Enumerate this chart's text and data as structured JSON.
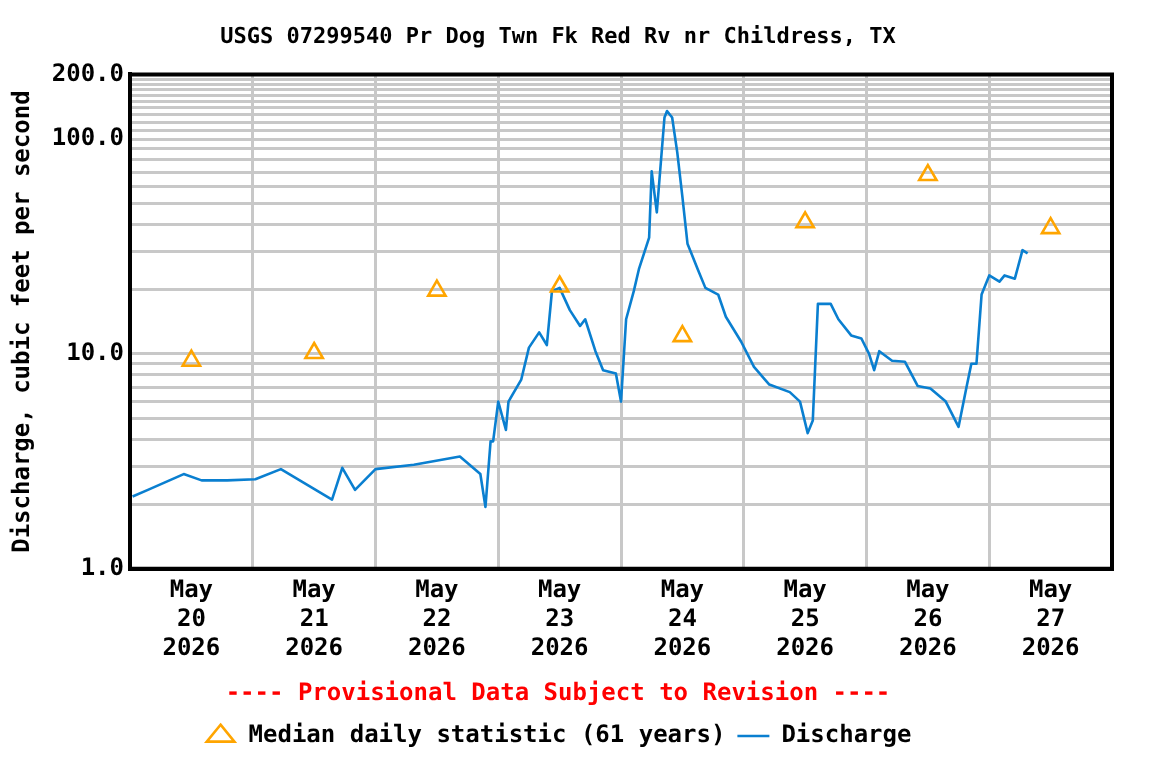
{
  "chart_data": {
    "type": "line",
    "title": "USGS 07299540 Pr Dog Twn Fk Red Rv nr Childress, TX",
    "ylabel": "Discharge, cubic feet per second",
    "annotations": [
      "---- Provisional Data Subject to Revision ----"
    ],
    "log": "y",
    "grid": true,
    "legend": "bottom",
    "xlim": [
      "2026-05-20T00:00",
      "2026-05-28T00:00"
    ],
    "xticks": [
      {
        "value": "2026-05-20T00:00",
        "label": null
      },
      {
        "value": "2026-05-20T12:00",
        "label": "May\n20\n2026"
      },
      {
        "value": "2026-05-21T00:00",
        "label": null
      },
      {
        "value": "2026-05-21T12:00",
        "label": "May\n21\n2026"
      },
      {
        "value": "2026-05-22T00:00",
        "label": null
      },
      {
        "value": "2026-05-22T12:00",
        "label": "May\n22\n2026"
      },
      {
        "value": "2026-05-23T00:00",
        "label": null
      },
      {
        "value": "2026-05-23T12:00",
        "label": "May\n23\n2026"
      },
      {
        "value": "2026-05-24T00:00",
        "label": null
      },
      {
        "value": "2026-05-24T12:00",
        "label": "May\n24\n2026"
      },
      {
        "value": "2026-05-25T00:00",
        "label": null
      },
      {
        "value": "2026-05-25T12:00",
        "label": "May\n25\n2026"
      },
      {
        "value": "2026-05-26T00:00",
        "label": null
      },
      {
        "value": "2026-05-26T12:00",
        "label": "May\n26\n2026"
      },
      {
        "value": "2026-05-27T00:00",
        "label": null
      },
      {
        "value": "2026-05-27T12:00",
        "label": "May\n27\n2026"
      },
      {
        "value": "2026-05-28T00:00",
        "label": null
      }
    ],
    "ylim": [
      1,
      200
    ],
    "yticks": [
      {
        "value": 1,
        "label": "1.0"
      },
      {
        "value": 2,
        "label": null
      },
      {
        "value": 3,
        "label": null
      },
      {
        "value": 4,
        "label": null
      },
      {
        "value": 5,
        "label": null
      },
      {
        "value": 6,
        "label": null
      },
      {
        "value": 7,
        "label": null
      },
      {
        "value": 8,
        "label": null
      },
      {
        "value": 9,
        "label": null
      },
      {
        "value": 10,
        "label": "10.0"
      },
      {
        "value": 20,
        "label": null
      },
      {
        "value": 30,
        "label": null
      },
      {
        "value": 40,
        "label": null
      },
      {
        "value": 50,
        "label": null
      },
      {
        "value": 60,
        "label": null
      },
      {
        "value": 70,
        "label": null
      },
      {
        "value": 80,
        "label": null
      },
      {
        "value": 90,
        "label": null
      },
      {
        "value": 100,
        "label": "100.0"
      },
      {
        "value": 110,
        "label": null
      },
      {
        "value": 120,
        "label": null
      },
      {
        "value": 130,
        "label": null
      },
      {
        "value": 140,
        "label": null
      },
      {
        "value": 150,
        "label": null
      },
      {
        "value": 160,
        "label": null
      },
      {
        "value": 170,
        "label": null
      },
      {
        "value": 180,
        "label": null
      },
      {
        "value": 190,
        "label": null
      },
      {
        "value": 200,
        "label": "200.0"
      }
    ],
    "series": [
      {
        "name": "Median daily statistic (61 years)",
        "type": "scatter",
        "marker": "triangle",
        "color": "#ffa500",
        "x": [
          "2026-05-20T12:00",
          "2026-05-21T12:00",
          "2026-05-22T12:00",
          "2026-05-23T12:00",
          "2026-05-24T12:00",
          "2026-05-25T12:00",
          "2026-05-26T12:00",
          "2026-05-27T12:00"
        ],
        "values": [
          9.3,
          10.1,
          19.7,
          20.6,
          12.1,
          41,
          68,
          38.5
        ]
      },
      {
        "name": "Discharge",
        "marker": "none",
        "color": "#0a7fd0",
        "x": [
          "2026-05-20T00:30",
          "2026-05-20T03:30",
          "2026-05-20T10:30",
          "2026-05-20T14:00",
          "2026-05-20T19:00",
          "2026-05-21T00:30",
          "2026-05-21T05:30",
          "2026-05-21T15:30",
          "2026-05-21T17:30",
          "2026-05-21T20:00",
          "2026-05-22T00:00",
          "2026-05-22T07:30",
          "2026-05-22T16:30",
          "2026-05-22T20:30",
          "2026-05-22T21:30",
          "2026-05-22T22:30",
          "2026-05-22T23:00",
          "2026-05-23T00:00",
          "2026-05-23T01:30",
          "2026-05-23T02:00",
          "2026-05-23T04:30",
          "2026-05-23T06:00",
          "2026-05-23T08:00",
          "2026-05-23T09:30",
          "2026-05-23T10:30",
          "2026-05-23T12:00",
          "2026-05-23T14:00",
          "2026-05-23T16:00",
          "2026-05-23T17:00",
          "2026-05-23T19:00",
          "2026-05-23T20:30",
          "2026-05-23T23:00",
          "2026-05-24T00:00",
          "2026-05-24T01:00",
          "2026-05-24T02:30",
          "2026-05-24T03:30",
          "2026-05-24T05:30",
          "2026-05-24T06:00",
          "2026-05-24T07:00",
          "2026-05-24T08:30",
          "2026-05-24T09:00",
          "2026-05-24T10:00",
          "2026-05-24T11:00",
          "2026-05-24T12:00",
          "2026-05-24T13:00",
          "2026-05-24T15:00",
          "2026-05-24T16:30",
          "2026-05-24T19:00",
          "2026-05-24T20:30",
          "2026-05-24T23:30",
          "2026-05-25T02:00",
          "2026-05-25T05:00",
          "2026-05-25T09:00",
          "2026-05-25T11:00",
          "2026-05-25T12:30",
          "2026-05-25T13:30",
          "2026-05-25T14:30",
          "2026-05-25T17:00",
          "2026-05-25T18:30",
          "2026-05-25T21:00",
          "2026-05-25T23:00",
          "2026-05-26T00:30",
          "2026-05-26T01:30",
          "2026-05-26T02:30",
          "2026-05-26T05:00",
          "2026-05-26T07:30",
          "2026-05-26T10:00",
          "2026-05-26T12:30",
          "2026-05-26T15:30",
          "2026-05-26T18:00",
          "2026-05-26T19:30",
          "2026-05-26T20:30",
          "2026-05-26T21:30",
          "2026-05-26T22:30",
          "2026-05-27T00:00",
          "2026-05-27T02:00",
          "2026-05-27T03:00",
          "2026-05-27T05:00",
          "2026-05-27T06:30",
          "2026-05-27T07:30"
        ],
        "values": [
          2.17,
          2.33,
          2.76,
          2.58,
          2.58,
          2.61,
          2.91,
          2.1,
          2.95,
          2.33,
          2.91,
          3.05,
          3.33,
          2.76,
          1.94,
          3.92,
          3.92,
          6.0,
          4.43,
          6.0,
          7.6,
          10.7,
          12.6,
          11.0,
          19.6,
          20.3,
          16.0,
          13.5,
          14.5,
          10.3,
          8.4,
          8.1,
          6.0,
          14.5,
          19.6,
          24.8,
          34.8,
          70.8,
          45.6,
          126,
          135,
          126,
          86.7,
          54,
          32.6,
          24.8,
          20.3,
          18.9,
          14.9,
          11.4,
          8.7,
          7.2,
          6.64,
          6.0,
          4.28,
          4.9,
          17.1,
          17.1,
          14.5,
          12.2,
          11.8,
          10.0,
          8.4,
          10.3,
          9.3,
          9.2,
          7.1,
          6.9,
          6.0,
          4.58,
          6.9,
          9.0,
          9.0,
          18.9,
          23.2,
          21.7,
          23.2,
          22.4,
          30.4,
          29.4
        ]
      }
    ]
  }
}
